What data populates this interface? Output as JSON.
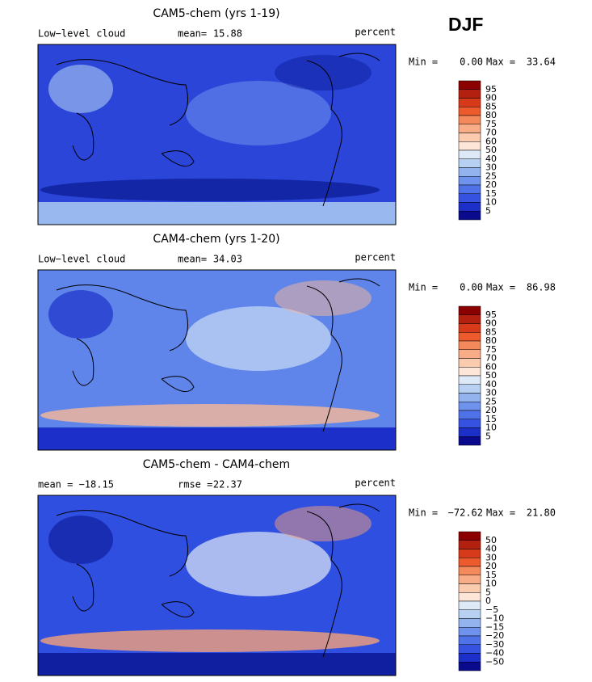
{
  "header": {
    "season": "DJF"
  },
  "panels": [
    {
      "title": "CAM5-chem (yrs 1-19)",
      "left_label": "Low−level cloud",
      "stat_label": "mean=",
      "stat": "15.88",
      "units": "percent",
      "min_label": "Min =",
      "min": "0.00",
      "max_label": "Max =",
      "max": "33.64",
      "colorbar": [
        "95",
        "90",
        "85",
        "80",
        "75",
        "70",
        "60",
        "50",
        "40",
        "30",
        "25",
        "20",
        "15",
        "10",
        "5"
      ]
    },
    {
      "title": "CAM4-chem (yrs 1-20)",
      "left_label": "Low−level cloud",
      "stat_label": "mean=",
      "stat": "34.03",
      "units": "percent",
      "min_label": "Min =",
      "min": "0.00",
      "max_label": "Max =",
      "max": "86.98",
      "colorbar": [
        "95",
        "90",
        "85",
        "80",
        "75",
        "70",
        "60",
        "50",
        "40",
        "30",
        "25",
        "20",
        "15",
        "10",
        "5"
      ]
    },
    {
      "title": "CAM5-chem - CAM4-chem",
      "left_label": "mean = −18.15",
      "stat_label": "rmse =",
      "stat": "22.37",
      "units": "percent",
      "min_label": "Min =",
      "min": "−72.62",
      "max_label": "Max =",
      "max": "21.80",
      "colorbar": [
        "50",
        "40",
        "30",
        "20",
        "15",
        "10",
        "5",
        "0",
        "−5",
        "−10",
        "−15",
        "−20",
        "−30",
        "−40",
        "−50"
      ]
    }
  ],
  "colorbar_colors": [
    "#8b0000",
    "#b3200f",
    "#d63a1a",
    "#ec5a2e",
    "#f48a5c",
    "#f8ac88",
    "#fbcbb0",
    "#fde6d8",
    "#dde9f7",
    "#b8d0f2",
    "#92b3ee",
    "#6f93ec",
    "#4f72e8",
    "#3552e0",
    "#1c30c9",
    "#0a0a8c"
  ]
}
